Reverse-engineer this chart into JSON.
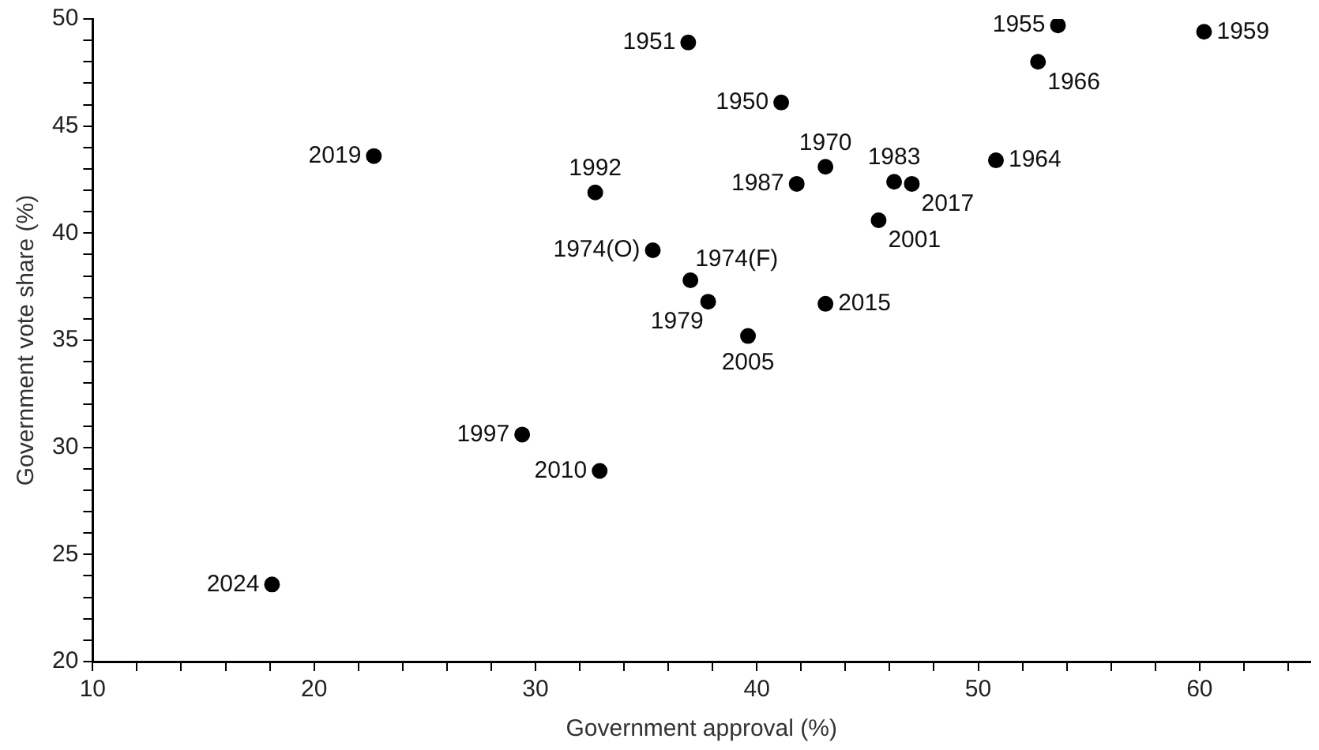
{
  "chart_data": {
    "type": "scatter",
    "xlabel": "Government approval (%)",
    "ylabel": "Government vote share (%)",
    "xlim": [
      10,
      65
    ],
    "xticks": [
      10,
      {
        "value": 12,
        "label": null
      },
      {
        "value": 14,
        "label": null
      },
      {
        "value": 16,
        "label": null
      },
      {
        "value": 18,
        "label": null
      },
      20,
      {
        "value": 22,
        "label": null
      },
      {
        "value": 24,
        "label": null
      },
      {
        "value": 26,
        "label": null
      },
      {
        "value": 28,
        "label": null
      },
      30,
      {
        "value": 32,
        "label": null
      },
      {
        "value": 34,
        "label": null
      },
      {
        "value": 36,
        "label": null
      },
      {
        "value": 38,
        "label": null
      },
      40,
      {
        "value": 42,
        "label": null
      },
      {
        "value": 44,
        "label": null
      },
      {
        "value": 46,
        "label": null
      },
      {
        "value": 48,
        "label": null
      },
      50,
      {
        "value": 52,
        "label": null
      },
      {
        "value": 54,
        "label": null
      },
      {
        "value": 56,
        "label": null
      },
      {
        "value": 58,
        "label": null
      },
      60,
      {
        "value": 62,
        "label": null
      },
      {
        "value": 64,
        "label": null
      }
    ],
    "ylim": [
      20,
      50
    ],
    "yticks": [
      20,
      {
        "value": 21,
        "label": null
      },
      {
        "value": 22,
        "label": null
      },
      {
        "value": 23,
        "label": null
      },
      {
        "value": 24,
        "label": null
      },
      25,
      {
        "value": 26,
        "label": null
      },
      {
        "value": 27,
        "label": null
      },
      {
        "value": 28,
        "label": null
      },
      {
        "value": 29,
        "label": null
      },
      30,
      {
        "value": 31,
        "label": null
      },
      {
        "value": 32,
        "label": null
      },
      {
        "value": 33,
        "label": null
      },
      {
        "value": 34,
        "label": null
      },
      35,
      {
        "value": 36,
        "label": null
      },
      {
        "value": 37,
        "label": null
      },
      {
        "value": 38,
        "label": null
      },
      {
        "value": 39,
        "label": null
      },
      40,
      {
        "value": 41,
        "label": null
      },
      {
        "value": 42,
        "label": null
      },
      {
        "value": 43,
        "label": null
      },
      {
        "value": 44,
        "label": null
      },
      45,
      {
        "value": 46,
        "label": null
      },
      {
        "value": 47,
        "label": null
      },
      {
        "value": 48,
        "label": null
      },
      {
        "value": 49,
        "label": null
      },
      50
    ],
    "grid": false,
    "legend": false,
    "marker": "circle",
    "series": [
      {
        "color": "#000000",
        "x": [
          41.1,
          36.9,
          53.6,
          60.2,
          50.8,
          52.7,
          43.1,
          37.0,
          35.3,
          37.8,
          46.2,
          41.8,
          32.7,
          29.4,
          45.5,
          39.6,
          32.9,
          43.1,
          47.0,
          22.7,
          18.1
        ],
        "values": [
          46.1,
          48.9,
          49.7,
          49.4,
          43.4,
          48.0,
          43.1,
          37.8,
          39.2,
          36.8,
          42.4,
          42.3,
          41.9,
          30.6,
          40.6,
          35.2,
          28.9,
          36.7,
          42.3,
          43.6,
          23.6
        ]
      }
    ],
    "annotations": [
      {
        "text": "1950",
        "x": 41.1,
        "y": 46.1
      },
      {
        "text": "1951",
        "x": 36.9,
        "y": 48.9
      },
      {
        "text": "1955",
        "x": 53.6,
        "y": 49.7
      },
      {
        "text": "1959",
        "x": 60.2,
        "y": 49.4
      },
      {
        "text": "1964",
        "x": 50.8,
        "y": 43.4
      },
      {
        "text": "1966",
        "x": 52.7,
        "y": 48.0
      },
      {
        "text": "1970",
        "x": 43.1,
        "y": 43.1
      },
      {
        "text": "1974(F)",
        "x": 37.0,
        "y": 37.8
      },
      {
        "text": "1974(O)",
        "x": 35.3,
        "y": 39.2
      },
      {
        "text": "1979",
        "x": 37.8,
        "y": 36.8
      },
      {
        "text": "1983",
        "x": 46.2,
        "y": 42.4
      },
      {
        "text": "1987",
        "x": 41.8,
        "y": 42.3
      },
      {
        "text": "1992",
        "x": 32.7,
        "y": 41.9
      },
      {
        "text": "1997",
        "x": 29.4,
        "y": 30.6
      },
      {
        "text": "2001",
        "x": 45.5,
        "y": 40.6
      },
      {
        "text": "2005",
        "x": 39.6,
        "y": 35.2
      },
      {
        "text": "2010",
        "x": 32.9,
        "y": 28.9
      },
      {
        "text": "2015",
        "x": 43.1,
        "y": 36.7
      },
      {
        "text": "2017",
        "x": 47.0,
        "y": 42.3
      },
      {
        "text": "2019",
        "x": 22.7,
        "y": 43.6
      },
      {
        "text": "2024",
        "x": 18.1,
        "y": 23.6
      }
    ]
  }
}
